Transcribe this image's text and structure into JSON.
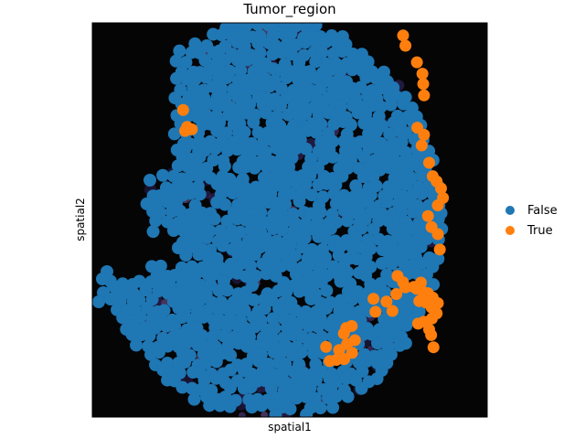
{
  "chart_data": {
    "type": "scatter",
    "title": "Tumor_region",
    "xlabel": "spatial1",
    "ylabel": "spatial2",
    "xlim": [
      0,
      100
    ],
    "ylim": [
      0,
      100
    ],
    "grid": false,
    "legend_placement": "right",
    "series": [
      {
        "name": "False",
        "color": "#1f77b4"
      },
      {
        "name": "True",
        "color": "#ff7f0e",
        "points": [
          [
            78.7,
            96.8
          ],
          [
            79.3,
            94.2
          ],
          [
            82.2,
            90.0
          ],
          [
            83.6,
            87.1
          ],
          [
            83.8,
            84.5
          ],
          [
            84.0,
            81.6
          ],
          [
            82.3,
            73.4
          ],
          [
            84.0,
            71.6
          ],
          [
            83.4,
            68.9
          ],
          [
            85.3,
            64.5
          ],
          [
            86.2,
            61.1
          ],
          [
            87.2,
            59.8
          ],
          [
            88.3,
            58.0
          ],
          [
            88.8,
            55.6
          ],
          [
            87.5,
            53.7
          ],
          [
            85.0,
            51.0
          ],
          [
            85.9,
            48.2
          ],
          [
            87.5,
            46.4
          ],
          [
            88.0,
            42.5
          ],
          [
            77.3,
            35.8
          ],
          [
            78.7,
            34.2
          ],
          [
            79.3,
            32.9
          ],
          [
            77.0,
            31.2
          ],
          [
            81.4,
            33.0
          ],
          [
            83.2,
            34.1
          ],
          [
            82.2,
            32.5
          ],
          [
            83.7,
            31.8
          ],
          [
            85.0,
            31.4
          ],
          [
            86.2,
            30.3
          ],
          [
            84.6,
            29.0
          ],
          [
            82.8,
            29.4
          ],
          [
            87.5,
            28.9
          ],
          [
            85.9,
            27.8
          ],
          [
            87.2,
            26.3
          ],
          [
            86.0,
            25.0
          ],
          [
            84.0,
            24.2
          ],
          [
            82.5,
            23.7
          ],
          [
            85.3,
            22.2
          ],
          [
            71.7,
            26.7
          ],
          [
            74.5,
            29.3
          ],
          [
            76.0,
            26.9
          ],
          [
            71.2,
            30.0
          ],
          [
            86.4,
            17.7
          ],
          [
            85.8,
            20.8
          ],
          [
            64.3,
            22.6
          ],
          [
            65.7,
            23.1
          ],
          [
            63.7,
            21.2
          ],
          [
            66.5,
            19.5
          ],
          [
            64.5,
            18.5
          ],
          [
            65.8,
            16.3
          ],
          [
            62.5,
            17.0
          ],
          [
            59.2,
            17.8
          ],
          [
            23.0,
            77.9
          ],
          [
            24.0,
            73.6
          ],
          [
            25.2,
            73.0
          ],
          [
            23.5,
            72.6
          ],
          [
            61.8,
            14.5
          ],
          [
            60.1,
            14.2
          ],
          [
            63.8,
            14.7
          ]
        ]
      }
    ]
  }
}
